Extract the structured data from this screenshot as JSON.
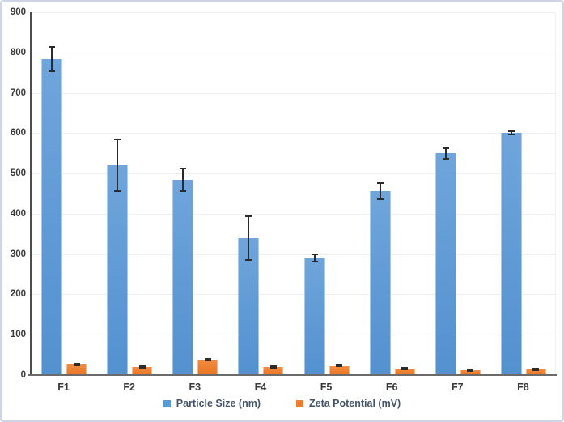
{
  "chart_data": {
    "type": "bar",
    "title": "",
    "categories": [
      "F1",
      "F2",
      "F3",
      "F4",
      "F5",
      "F6",
      "F7",
      "F8"
    ],
    "series": [
      {
        "name": "Particle Size (nm)",
        "color": "#5B9BD5",
        "gradient_top": "#6FA5DB",
        "gradient_bottom": "#5391CF",
        "values": [
          783,
          521,
          485,
          339,
          290,
          456,
          550,
          600
        ],
        "errors": [
          30,
          64,
          28,
          54,
          9,
          20,
          13,
          4
        ]
      },
      {
        "name": "Zeta Potential (mV)",
        "color": "#ED7D31",
        "gradient_top": "#F28C44",
        "gradient_bottom": "#EA7420",
        "values": [
          26,
          21,
          38,
          20,
          23,
          17,
          12,
          15
        ],
        "errors": [
          2,
          2,
          2,
          2,
          1,
          2,
          2,
          2
        ]
      }
    ],
    "ylim": [
      0,
      900
    ],
    "ytick_step": 100,
    "ytick_labels": [
      "0",
      "100",
      "200",
      "300",
      "400",
      "500",
      "600",
      "700",
      "800",
      "900"
    ],
    "xlabel": "",
    "ylabel": "",
    "grid": true,
    "error_bars": true,
    "legend_position": "bottom"
  },
  "colors": {
    "frame_border": "#ccd6e8",
    "gridline": "#efefef",
    "axis_line": "#595959",
    "tick_text": "#3a3a3a",
    "legend_text": "#44546A",
    "error_bar": "#2b2b2b",
    "background": "#ffffff"
  }
}
